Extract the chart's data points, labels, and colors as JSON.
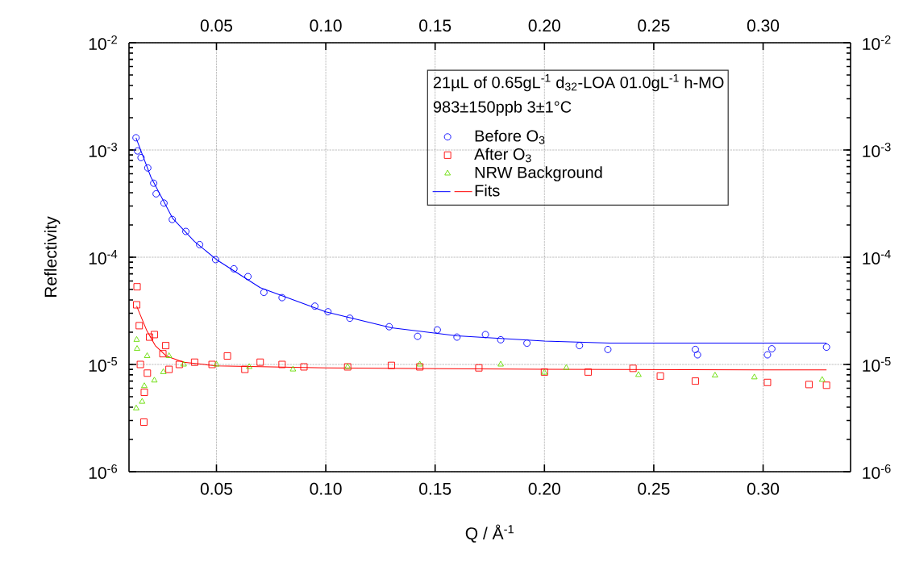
{
  "chart_data": {
    "type": "scatter",
    "xlabel": "Q / Å$^{-1}$",
    "ylabel": "Reflectivity",
    "annotations": [
      "21µL of 0.65gL$^{-1}$ d$_{32}$-LOA 01.0gL$^{-1}$ h-MO",
      "983±150ppb   3±1°C"
    ],
    "xlim": [
      0.01,
      0.34
    ],
    "ylim": [
      1e-06,
      0.01
    ],
    "x2lim": [
      0.01,
      0.34
    ],
    "xticks": [
      {
        "value": 0.05,
        "label": "0.05"
      },
      {
        "value": 0.1,
        "label": "0.10"
      },
      {
        "value": 0.15,
        "label": "0.15"
      },
      {
        "value": 0.2,
        "label": "0.20"
      },
      {
        "value": 0.25,
        "label": "0.25"
      },
      {
        "value": 0.3,
        "label": "0.30"
      }
    ],
    "x2ticks": [
      {
        "value": 0.05,
        "label": "0.05"
      },
      {
        "value": 0.1,
        "label": "0.10"
      },
      {
        "value": 0.15,
        "label": "0.15"
      },
      {
        "value": 0.2,
        "label": "0.20"
      },
      {
        "value": 0.25,
        "label": "0.25"
      },
      {
        "value": 0.3,
        "label": "0.30"
      }
    ],
    "yticks": [
      {
        "value": 1e-06,
        "label": "10$^{-6}$"
      },
      {
        "value": 1e-05,
        "label": "10$^{-5}$"
      },
      {
        "value": 0.0001,
        "label": "10$^{-4}$"
      },
      {
        "value": 0.001,
        "label": "10$^{-3}$"
      },
      {
        "value": 0.01,
        "label": "10$^{-2}$"
      }
    ],
    "log": "y",
    "grid": true,
    "legend": "top right",
    "series": [
      {
        "name": "Before O$_{3}$",
        "type": "scatter",
        "marker": "circle",
        "color": "#0000ff",
        "x": [
          0.0132,
          0.0139,
          0.0155,
          0.0186,
          0.0213,
          0.0224,
          0.026,
          0.0298,
          0.036,
          0.0423,
          0.0496,
          0.058,
          0.0644,
          0.0717,
          0.08,
          0.095,
          0.101,
          0.111,
          0.129,
          0.142,
          0.151,
          0.16,
          0.173,
          0.18,
          0.192,
          0.216,
          0.229,
          0.269,
          0.27,
          0.302,
          0.304,
          0.329
        ],
        "values": [
          0.0013,
          0.00098,
          0.00085,
          0.00068,
          0.00049,
          0.00039,
          0.00032,
          0.000225,
          0.000174,
          0.000131,
          9.5e-05,
          7.8e-05,
          6.6e-05,
          4.7e-05,
          4.2e-05,
          3.5e-05,
          3.1e-05,
          2.7e-05,
          2.25e-05,
          1.83e-05,
          2.1e-05,
          1.8e-05,
          1.9e-05,
          1.7e-05,
          1.58e-05,
          1.5e-05,
          1.38e-05,
          1.38e-05,
          1.23e-05,
          1.23e-05,
          1.4e-05,
          1.45e-05
        ]
      },
      {
        "name": "After O$_{3}$",
        "type": "scatter",
        "marker": "square",
        "color": "#ff0000",
        "x": [
          0.0137,
          0.0135,
          0.0147,
          0.0152,
          0.0168,
          0.017,
          0.0184,
          0.0194,
          0.0216,
          0.0255,
          0.0268,
          0.0283,
          0.033,
          0.04,
          0.048,
          0.055,
          0.063,
          0.07,
          0.08,
          0.09,
          0.11,
          0.13,
          0.143,
          0.17,
          0.2,
          0.22,
          0.2405,
          0.253,
          0.269,
          0.302,
          0.321,
          0.329
        ],
        "values": [
          5.3e-05,
          3.6e-05,
          2.3e-05,
          1e-05,
          2.9e-06,
          5.5e-06,
          8.3e-06,
          1.8e-05,
          1.9e-05,
          1.26e-05,
          1.5e-05,
          9e-06,
          1e-05,
          1.05e-05,
          1e-05,
          1.2e-05,
          9e-06,
          1.05e-05,
          1e-05,
          9.5e-06,
          9.5e-06,
          9.8e-06,
          9.5e-06,
          9.3e-06,
          8.5e-06,
          8.5e-06,
          9.2e-06,
          7.8e-06,
          7e-06,
          6.8e-06,
          6.5e-06,
          6.4e-06
        ]
      },
      {
        "name": "NRW Background",
        "type": "scatter",
        "marker": "triangle",
        "color": "#66dd00",
        "x": [
          0.0133,
          0.0135,
          0.0137,
          0.016,
          0.017,
          0.0183,
          0.0216,
          0.0257,
          0.0283,
          0.035,
          0.05,
          0.065,
          0.085,
          0.11,
          0.143,
          0.18,
          0.2,
          0.21,
          0.243,
          0.278,
          0.296,
          0.327
        ],
        "values": [
          3.9e-06,
          1.7e-05,
          1.4e-05,
          4.5e-06,
          6.3e-06,
          1.2e-05,
          7.1e-06,
          8.5e-06,
          1.2e-05,
          1e-05,
          1e-05,
          9.5e-06,
          9e-06,
          9.5e-06,
          1e-05,
          1e-05,
          8.4e-06,
          9.3e-06,
          8e-06,
          7.9e-06,
          7.6e-06,
          7.2e-06
        ]
      },
      {
        "type": "line",
        "marker": "none",
        "color": "#0000ff",
        "x": [
          0.0132,
          0.02,
          0.03,
          0.04,
          0.05,
          0.07,
          0.1,
          0.13,
          0.16,
          0.2,
          0.23,
          0.26,
          0.3,
          0.329
        ],
        "values": [
          0.0013,
          0.00056,
          0.00023,
          0.00014,
          9.5e-05,
          5.2e-05,
          3.1e-05,
          2.2e-05,
          1.85e-05,
          1.65e-05,
          1.58e-05,
          1.58e-05,
          1.58e-05,
          1.58e-05
        ]
      },
      {
        "name": "Fits",
        "type": "line",
        "marker": "none",
        "color": "#ff0000",
        "x": [
          0.0135,
          0.018,
          0.022,
          0.027,
          0.035,
          0.05,
          0.1,
          0.2,
          0.3,
          0.329
        ],
        "values": [
          3.5e-05,
          2.1e-05,
          1.5e-05,
          1.2e-05,
          1.05e-05,
          9.7e-06,
          9.3e-06,
          9e-06,
          8.9e-06,
          8.9e-06
        ]
      }
    ]
  }
}
